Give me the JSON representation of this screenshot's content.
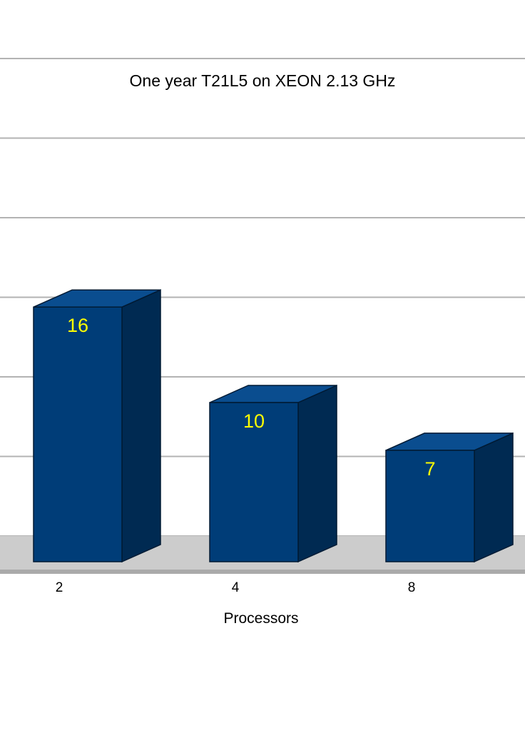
{
  "chart_data": {
    "type": "bar",
    "title": "One year T21L5 on XEON 2.13 GHz",
    "xlabel": "Processors",
    "ylabel": "",
    "categories": [
      "2",
      "4",
      "8"
    ],
    "values": [
      16,
      10,
      7
    ],
    "data_labels": [
      "16",
      "10",
      "7"
    ],
    "ylim": [
      0,
      30
    ],
    "grid": true,
    "style": "3d-column",
    "legend": "none"
  },
  "colors": {
    "bar_front": "#003d78",
    "bar_side": "#002a52",
    "bar_top": "#0a4d8f",
    "data_label": "#ffff00",
    "gridline": "#b3b3b3",
    "floor": "#cccccc"
  }
}
